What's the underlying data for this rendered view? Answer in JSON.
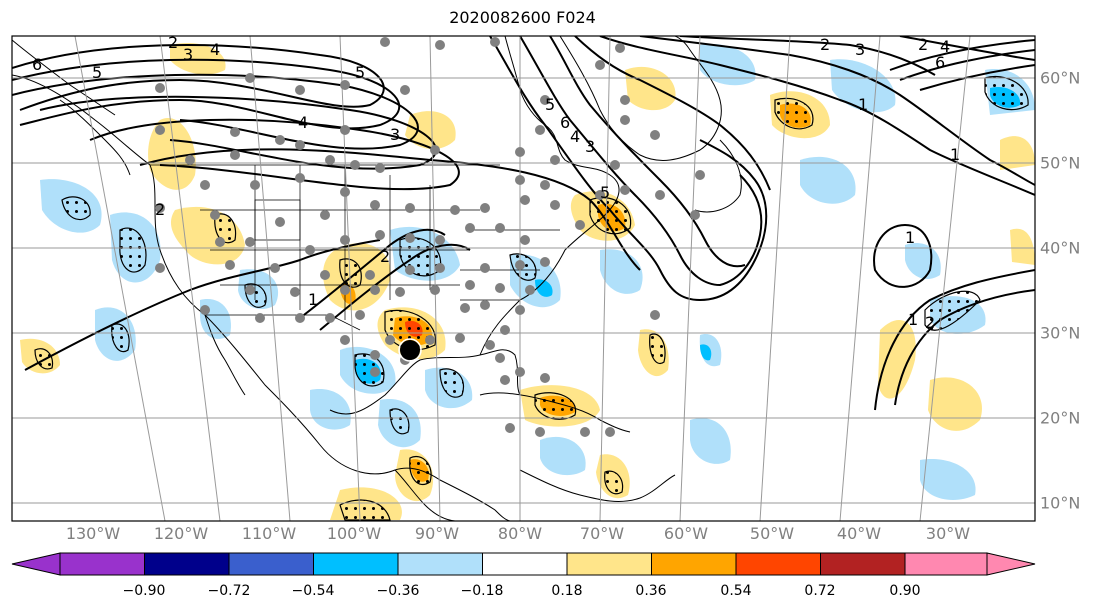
{
  "title": "2020082600 F024",
  "lon_labels": [
    "130°W",
    "120°W",
    "110°W",
    "100°W",
    "90°W",
    "80°W",
    "70°W",
    "60°W",
    "50°W",
    "40°W",
    "30°W"
  ],
  "lat_labels": [
    "60°N",
    "50°N",
    "40°N",
    "30°N",
    "20°N",
    "10°N"
  ],
  "colorbar": {
    "ticks": [
      "−0.90",
      "−0.72",
      "−0.54",
      "−0.36",
      "−0.18",
      "0.18",
      "0.36",
      "0.54",
      "0.72",
      "0.90"
    ],
    "colors": [
      "#9932cc",
      "#00008b",
      "#3a5fcd",
      "#00bfff",
      "#b0e0fa",
      "#ffffff",
      "#ffe58a",
      "#ffa500",
      "#ff4500",
      "#b22222",
      "#ff88b0"
    ]
  },
  "contour_labels": [
    "6",
    "5",
    "5",
    "4",
    "3",
    "2",
    "2",
    "1",
    "1",
    "1",
    "2",
    "1",
    "2",
    "3",
    "4",
    "6",
    "5",
    "4",
    "3",
    "2",
    "1",
    "2",
    "3",
    "4",
    "5",
    "6"
  ],
  "colors": {
    "land_outline": "#000000",
    "grid": "#9a9a9a",
    "station": "#808080",
    "positive_fill": "#ffe58a",
    "positive_strong": "#ffa500",
    "positive_extreme": "#ff4500",
    "negative_fill": "#b0e0fa",
    "negative_strong": "#00bfff"
  }
}
